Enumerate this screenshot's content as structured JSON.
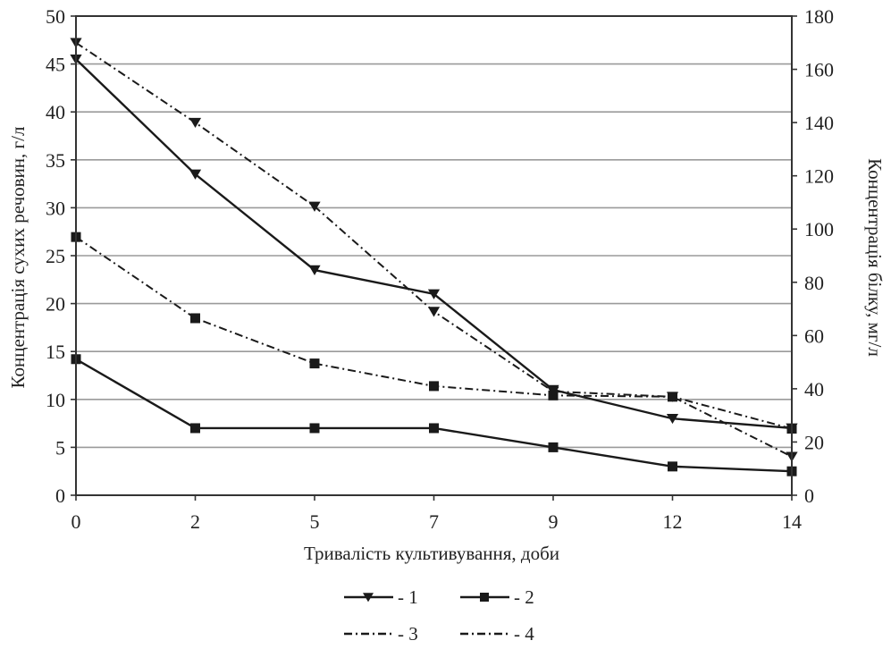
{
  "chart_data": {
    "type": "line",
    "title": "",
    "xlabel": "Тривалість культивування, доби",
    "ylabel": "Концентрація сухих речовин, г/л",
    "ylabel_right": "Концентрація білку, мг/л",
    "categories": [
      "0",
      "2",
      "5",
      "7",
      "9",
      "12",
      "14"
    ],
    "ylim": [
      0,
      50
    ],
    "yticks": [
      0,
      5,
      10,
      15,
      20,
      25,
      30,
      35,
      40,
      45,
      50
    ],
    "y2lim": [
      0,
      180
    ],
    "y2ticks": [
      0,
      20,
      40,
      60,
      80,
      100,
      120,
      140,
      160,
      180
    ],
    "grid": true,
    "legend_position": "bottom-center",
    "series": [
      {
        "name": "- 1",
        "axis": "left",
        "line": "solid",
        "marker": "triangle-down",
        "values": [
          45.5,
          33.5,
          23.5,
          21,
          11,
          8,
          7
        ]
      },
      {
        "name": "- 2",
        "axis": "left",
        "line": "solid",
        "marker": "square",
        "values": [
          14.2,
          7,
          7,
          7,
          5,
          3,
          2.5
        ]
      },
      {
        "name": "- 3",
        "axis": "right",
        "line": "dash-dot",
        "marker": "square",
        "values": [
          97,
          66.5,
          49.5,
          41,
          37.5,
          37,
          25
        ]
      },
      {
        "name": "- 4",
        "axis": "right",
        "line": "dash-dot",
        "marker": "triangle-down",
        "values": [
          170,
          140,
          108.5,
          69,
          39,
          37,
          14.5
        ]
      }
    ]
  },
  "colors": {
    "line": "#1a1a1a",
    "grid": "#9a9a9a",
    "background": "#ffffff"
  }
}
